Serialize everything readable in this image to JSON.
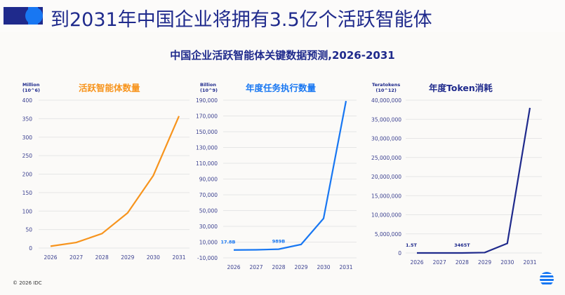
{
  "header": {
    "title": "到2031年中国企业将拥有3.5亿个活跃智能体"
  },
  "subtitle": "中国企业活跃智能体关键数据预测,2026-2031",
  "footer": {
    "copyright": "© 2026 IDC"
  },
  "chart_data": [
    {
      "type": "line",
      "title": "活跃智能体数量",
      "ylabel": "Million (10^6)",
      "color": "#f7941d",
      "categories": [
        "2026",
        "2027",
        "2028",
        "2029",
        "2030",
        "2031"
      ],
      "values": [
        5,
        15,
        39,
        95,
        196,
        357
      ],
      "ylim": [
        0,
        400
      ],
      "yticks": [
        0,
        50,
        100,
        150,
        200,
        250,
        300,
        350,
        400
      ],
      "ytick_labels": [
        "0",
        "50",
        "100",
        "150",
        "200",
        "250",
        "300",
        "350",
        "400"
      ],
      "annotations": []
    },
    {
      "type": "line",
      "title": "年度任务执行数量",
      "ylabel": "Billion (10^9)",
      "color": "#1877f2",
      "categories": [
        "2026",
        "2027",
        "2028",
        "2029",
        "2030",
        "2031"
      ],
      "values": [
        17.8,
        200,
        989,
        7000,
        40000,
        189000
      ],
      "ylim": [
        -10000,
        190000
      ],
      "yticks": [
        -10000,
        10000,
        30000,
        50000,
        70000,
        90000,
        110000,
        130000,
        150000,
        170000,
        190000
      ],
      "ytick_labels": [
        "-10,000",
        "10,000",
        "30,000",
        "50,000",
        "70,000",
        "90,000",
        "110,000",
        "130,000",
        "150,000",
        "170,000",
        "190,000"
      ],
      "annotations": [
        {
          "index": 0,
          "text": "17.8B"
        },
        {
          "index": 2,
          "text": "989B"
        }
      ]
    },
    {
      "type": "line",
      "title": "年度Token消耗",
      "ylabel": "Teratokens (10^12)",
      "color": "#1f2a8c",
      "categories": [
        "2026",
        "2027",
        "2028",
        "2029",
        "2030",
        "2031"
      ],
      "values": [
        1.5,
        60,
        3465,
        100000,
        2500000,
        38000000
      ],
      "ylim": [
        0,
        40000000
      ],
      "yticks": [
        0,
        5000000,
        10000000,
        15000000,
        20000000,
        25000000,
        30000000,
        35000000,
        40000000
      ],
      "ytick_labels": [
        "0",
        "5,000,000",
        "10,000,000",
        "15,000,000",
        "20,000,000",
        "25,000,000",
        "30,000,000",
        "35,000,000",
        "40,000,000"
      ],
      "annotations": [
        {
          "index": 0,
          "text": "1.5T"
        },
        {
          "index": 2,
          "text": "3465T"
        }
      ]
    }
  ],
  "units": [
    [
      "Million",
      "(10^6)"
    ],
    [
      "Billion",
      "(10^9)"
    ],
    [
      "Teratokens",
      "(10^12)"
    ]
  ]
}
